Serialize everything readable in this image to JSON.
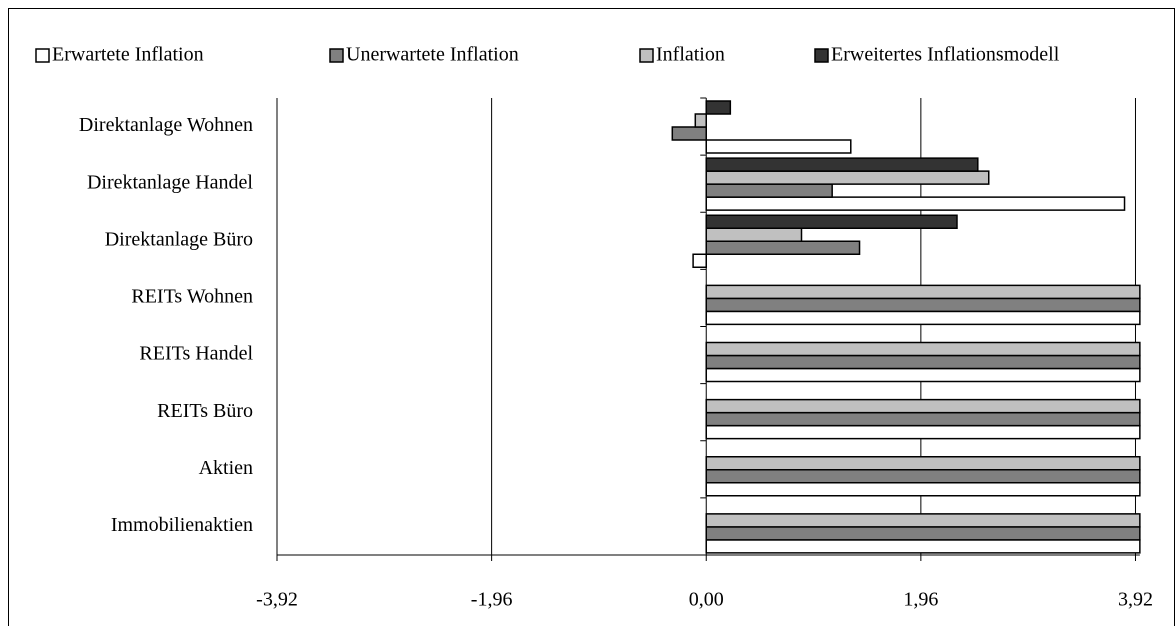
{
  "chart_data": {
    "type": "hbar",
    "categories": [
      "Direktanlage Wohnen",
      "Direktanlage Handel",
      "Direktanlage Büro",
      "REITs Wohnen",
      "REITs Handel",
      "REITs Büro",
      "Aktien",
      "Immobilienaktien"
    ],
    "series": [
      {
        "name": "Erwartete Inflation",
        "color": "#ffffff",
        "values": [
          1.32,
          3.82,
          -0.12,
          3.96,
          3.96,
          3.96,
          3.96,
          3.96
        ]
      },
      {
        "name": "Unerwartete Inflation",
        "color": "#808080",
        "values": [
          -0.31,
          1.15,
          1.4,
          3.96,
          3.96,
          3.96,
          3.96,
          3.96
        ]
      },
      {
        "name": "Inflation",
        "color": "#c0c0c0",
        "values": [
          -0.1,
          2.58,
          0.87,
          3.96,
          3.96,
          3.96,
          3.96,
          3.96
        ]
      },
      {
        "name": "Erweitertes Inflationsmodell",
        "color": "#333333",
        "values": [
          0.22,
          2.48,
          2.29,
          null,
          null,
          null,
          null,
          null
        ]
      }
    ],
    "xlim": [
      -3.92,
      3.96
    ],
    "xticks": [
      {
        "value": -3.92,
        "label": "-3,92"
      },
      {
        "value": -1.96,
        "label": "-1,96"
      },
      {
        "value": 0,
        "label": "0,00"
      },
      {
        "value": 1.96,
        "label": "1,96"
      },
      {
        "value": 3.92,
        "label": "3,92"
      }
    ],
    "grid": true,
    "legend": "top"
  }
}
